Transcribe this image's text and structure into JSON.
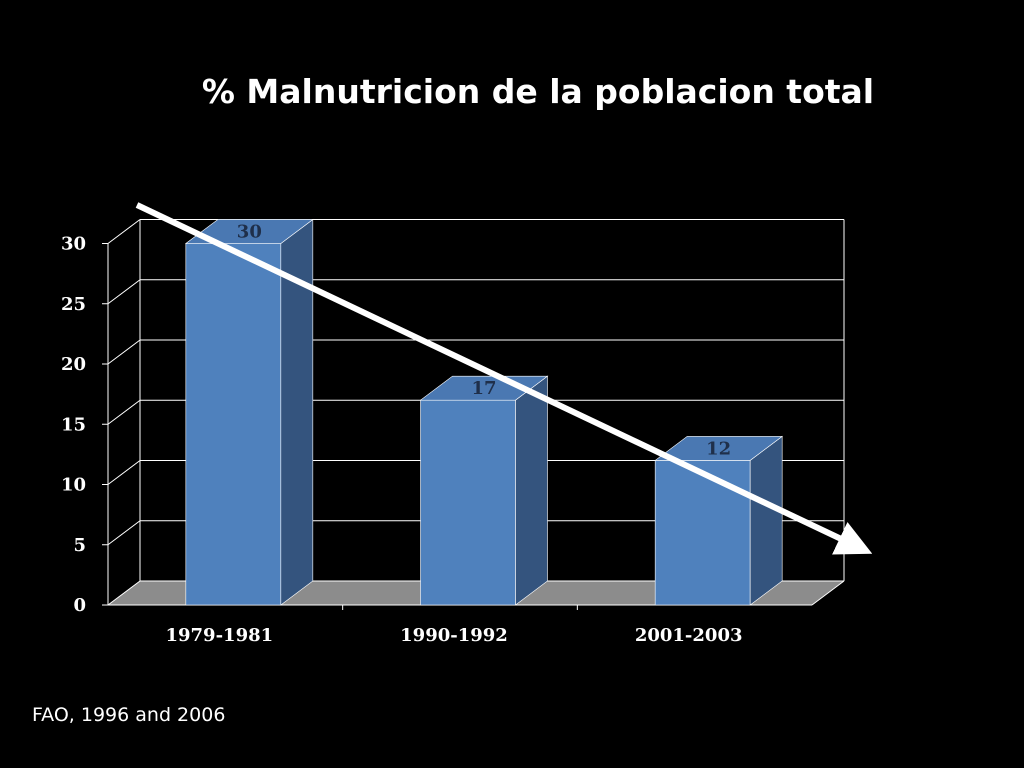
{
  "title": "% Malnutricion de la poblacion total",
  "source": "FAO, 1996 and 2006",
  "colors": {
    "background": "#000000",
    "bar_front": "#4f81bd",
    "bar_side": "#34547e",
    "bar_top": "#4a78b2",
    "floor": "#8c8c8c",
    "grid": "#ffffff",
    "trend_arrow": "#ffffff"
  },
  "chart_data": {
    "type": "bar",
    "style": "3d-column",
    "categories": [
      "1979-1981",
      "1990-1992",
      "2001-2003"
    ],
    "values": [
      30,
      17,
      12
    ],
    "data_labels": [
      "30",
      "17",
      "12"
    ],
    "ylim": [
      0,
      30
    ],
    "yticks": [
      "0",
      "5",
      "10",
      "15",
      "20",
      "25",
      "30"
    ],
    "grid": true,
    "legend": "none",
    "annotations": [
      "downward trend arrow"
    ]
  }
}
